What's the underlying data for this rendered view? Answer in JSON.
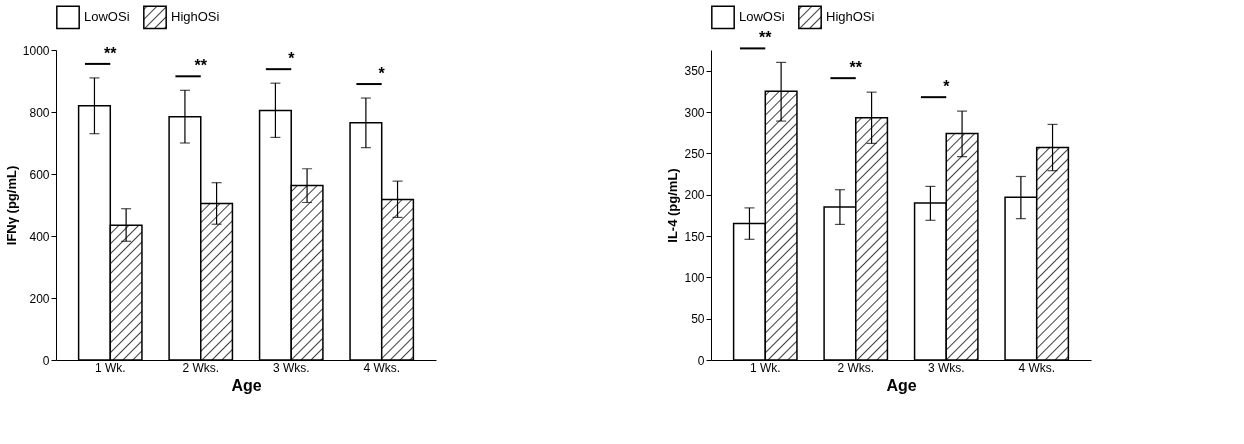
{
  "chart_data": [
    {
      "type": "bar",
      "categories": [
        "1 Wk.",
        "2 Wks.",
        "3 Wks.",
        "4 Wks."
      ],
      "xlabel": "Age",
      "ylabel": "IFNγ (pg/mL)",
      "ylim": [
        0,
        1000
      ],
      "yticks": [
        0,
        200,
        400,
        600,
        800,
        1000
      ],
      "legend": "top",
      "grid": false,
      "series": [
        {
          "name": "LowOSi",
          "color": "#ffffff",
          "values": [
            820,
            785,
            805,
            765
          ],
          "errors": [
            [
              730,
              910
            ],
            [
              700,
              870
            ],
            [
              718,
              893
            ],
            [
              685,
              845
            ]
          ]
        },
        {
          "name": "HighOSi",
          "color": "#000000",
          "values": [
            435,
            505,
            563,
            518
          ],
          "errors": [
            [
              383,
              488
            ],
            [
              438,
              572
            ],
            [
              508,
              617
            ],
            [
              460,
              577
            ]
          ]
        }
      ],
      "annotations": [
        "**",
        "**",
        "*",
        "*"
      ]
    },
    {
      "type": "bar",
      "categories": [
        "1 Wk.",
        "2 Wks.",
        "3 Wks.",
        "4 Wks."
      ],
      "xlabel": "Age",
      "ylabel": "IL-4 (pg/mL)",
      "ylim": [
        0,
        375
      ],
      "yticks": [
        0,
        50,
        100,
        150,
        200,
        250,
        300,
        350
      ],
      "legend": "top",
      "grid": false,
      "series": [
        {
          "name": "LowOSi",
          "color": "#ffffff",
          "values": [
            165,
            185,
            190,
            197
          ],
          "errors": [
            [
              146,
              184
            ],
            [
              164,
              206
            ],
            [
              169,
              210
            ],
            [
              171,
              222
            ]
          ]
        },
        {
          "name": "HighOSi",
          "color": "#000000",
          "values": [
            325,
            293,
            274,
            257
          ],
          "errors": [
            [
              289,
              360
            ],
            [
              262,
              324
            ],
            [
              246,
              301
            ],
            [
              229,
              285
            ]
          ]
        }
      ],
      "annotations": [
        "**",
        "**",
        "*"
      ]
    }
  ]
}
